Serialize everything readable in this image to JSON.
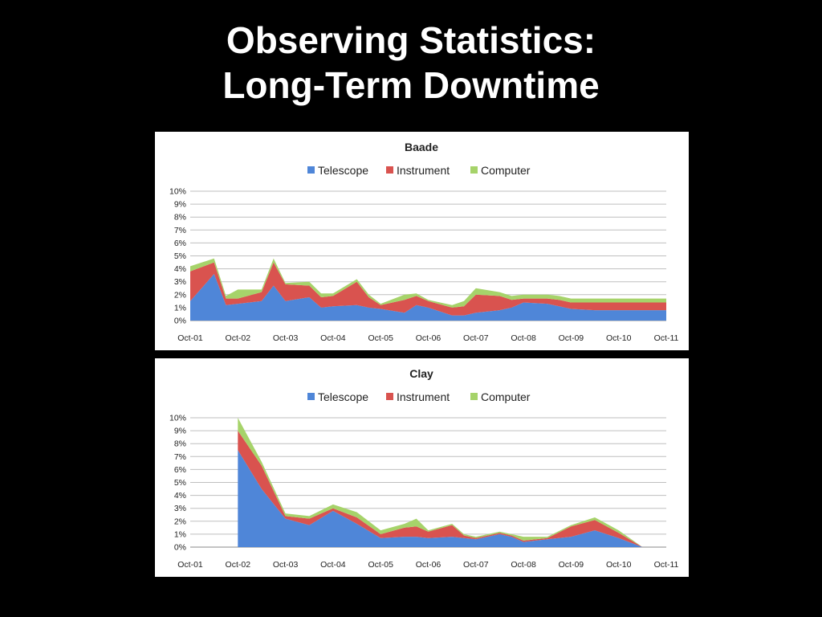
{
  "slide": {
    "title_line1": "Observing Statistics:",
    "title_line2": "Long-Term Downtime"
  },
  "colors": {
    "telescope": "#4f86d8",
    "instrument": "#d9534f",
    "computer": "#a6d36a",
    "grid": "#bfbfbf"
  },
  "chart_data": [
    {
      "type": "area",
      "stacked": true,
      "title": "Baade",
      "legend_position": "top",
      "grid": true,
      "ylim": [
        0,
        10
      ],
      "y_ticks": [
        "0%",
        "1%",
        "2%",
        "3%",
        "4%",
        "5%",
        "6%",
        "7%",
        "8%",
        "9%",
        "10%"
      ],
      "x_tick_labels": [
        "Oct-01",
        "Oct-02",
        "Oct-03",
        "Oct-04",
        "Oct-05",
        "Oct-06",
        "Oct-07",
        "Oct-08",
        "Oct-09",
        "Oct-10",
        "Oct-11"
      ],
      "x": [
        2001.75,
        2002.25,
        2002.5,
        2002.75,
        2003.25,
        2003.5,
        2003.75,
        2004.25,
        2004.5,
        2004.75,
        2005.25,
        2005.5,
        2005.75,
        2006.25,
        2006.5,
        2006.75,
        2007.25,
        2007.5,
        2007.75,
        2008.25,
        2008.5,
        2008.75,
        2009.25,
        2009.5,
        2009.75,
        2010.25,
        2010.75,
        2011.25,
        2011.75
      ],
      "series": [
        {
          "name": "Telescope",
          "values": [
            1.5,
            3.6,
            1.2,
            1.3,
            1.5,
            2.7,
            1.5,
            1.8,
            1.0,
            1.1,
            1.2,
            1.0,
            0.9,
            0.6,
            1.2,
            1.0,
            0.4,
            0.4,
            0.6,
            0.8,
            1.0,
            1.4,
            1.3,
            1.1,
            0.9,
            0.8,
            0.8,
            0.8,
            0.8
          ]
        },
        {
          "name": "Instrument",
          "values": [
            2.3,
            0.9,
            0.5,
            0.4,
            0.7,
            1.8,
            1.3,
            0.9,
            0.8,
            0.8,
            1.8,
            0.8,
            0.3,
            1.0,
            0.7,
            0.5,
            0.6,
            0.7,
            1.4,
            1.1,
            0.6,
            0.3,
            0.4,
            0.5,
            0.5,
            0.6,
            0.6,
            0.6,
            0.6
          ]
        },
        {
          "name": "Computer",
          "values": [
            0.4,
            0.3,
            0.2,
            0.7,
            0.2,
            0.3,
            0.1,
            0.3,
            0.3,
            0.2,
            0.2,
            0.2,
            0.1,
            0.4,
            0.2,
            0.1,
            0.2,
            0.4,
            0.5,
            0.3,
            0.3,
            0.3,
            0.3,
            0.3,
            0.3,
            0.3,
            0.3,
            0.3,
            0.3
          ]
        }
      ]
    },
    {
      "type": "area",
      "stacked": true,
      "title": "Clay",
      "legend_position": "top",
      "grid": true,
      "ylim": [
        0,
        10
      ],
      "y_ticks": [
        "0%",
        "1%",
        "2%",
        "3%",
        "4%",
        "5%",
        "6%",
        "7%",
        "8%",
        "9%",
        "10%"
      ],
      "x_tick_labels": [
        "Oct-01",
        "Oct-02",
        "Oct-03",
        "Oct-04",
        "Oct-05",
        "Oct-06",
        "Oct-07",
        "Oct-08",
        "Oct-09",
        "Oct-10",
        "Oct-11"
      ],
      "x": [
        2002.75,
        2003.25,
        2003.75,
        2004.25,
        2004.75,
        2005.25,
        2005.75,
        2006.25,
        2006.5,
        2006.75,
        2007.25,
        2007.5,
        2007.75,
        2008.25,
        2008.5,
        2008.75,
        2009.25,
        2009.75,
        2010.25,
        2010.75,
        2011.25,
        2011.75
      ],
      "series": [
        {
          "name": "Telescope",
          "values": [
            7.5,
            4.5,
            2.2,
            1.7,
            2.8,
            1.8,
            0.7,
            0.8,
            0.8,
            0.7,
            0.8,
            0.7,
            0.6,
            1.0,
            0.8,
            0.4,
            0.6,
            0.8,
            1.3,
            0.7,
            0.0,
            0.0
          ]
        },
        {
          "name": "Instrument",
          "values": [
            1.5,
            1.8,
            0.2,
            0.5,
            0.2,
            0.5,
            0.3,
            0.7,
            0.8,
            0.5,
            0.9,
            0.2,
            0.1,
            0.1,
            0.1,
            0.1,
            0.1,
            0.8,
            0.8,
            0.4,
            0.0,
            0.0
          ]
        },
        {
          "name": "Computer",
          "values": [
            1.0,
            0.3,
            0.2,
            0.2,
            0.3,
            0.4,
            0.3,
            0.3,
            0.6,
            0.1,
            0.1,
            0.1,
            0.1,
            0.1,
            0.1,
            0.3,
            0.1,
            0.1,
            0.2,
            0.2,
            0.0,
            0.0
          ]
        }
      ]
    }
  ]
}
